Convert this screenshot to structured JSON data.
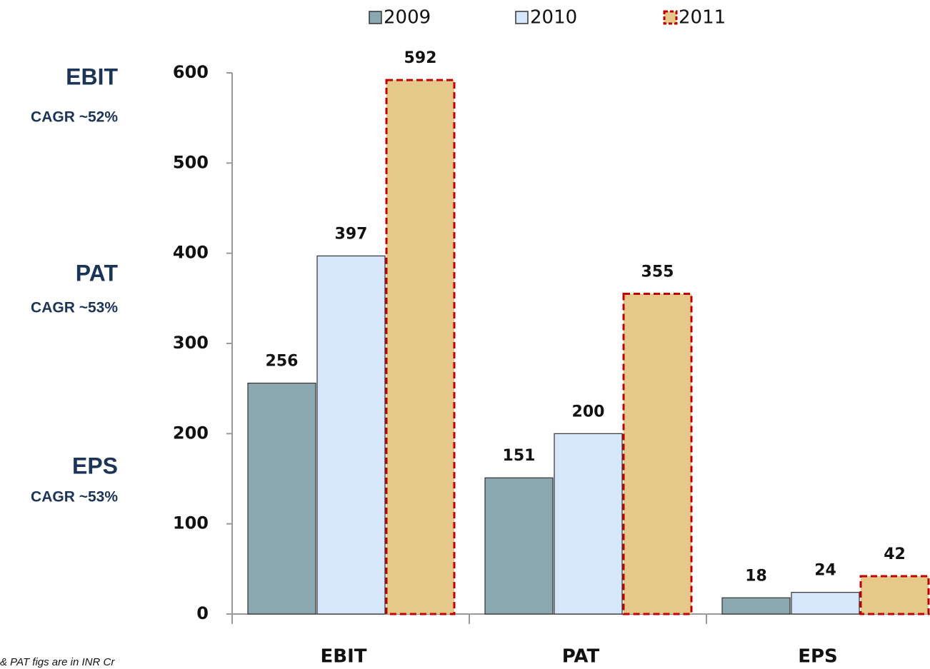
{
  "chart_data": {
    "type": "bar",
    "categories": [
      "EBIT",
      "PAT",
      "EPS"
    ],
    "series": [
      {
        "name": "2009",
        "color": "#8ba7b0",
        "edgecolor": "#333333",
        "linestyle": "solid",
        "values": [
          256,
          151,
          18
        ]
      },
      {
        "name": "2010",
        "color": "#d6e6fb",
        "edgecolor": "#333333",
        "linestyle": "solid",
        "values": [
          397,
          200,
          24
        ]
      },
      {
        "name": "2011",
        "color": "#e6c98a",
        "edgecolor": "#c00000",
        "linestyle": "dashed",
        "values": [
          592,
          355,
          42
        ]
      }
    ],
    "ylim": [
      0,
      600
    ],
    "yticks": [
      0,
      100,
      200,
      300,
      400,
      500,
      600
    ],
    "legend": "top",
    "annotations": [
      "EBIT",
      "CAGR ~52%",
      "PAT",
      "CAGR ~53%",
      "EPS",
      "CAGR ~53%"
    ],
    "note": "& PAT figs are in INR Cr"
  }
}
